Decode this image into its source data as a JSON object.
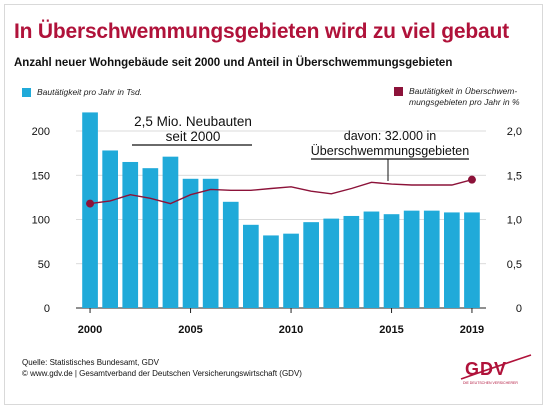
{
  "title": "In Überschwemmungsgebieten wird zu viel gebaut",
  "subtitle": "Anzahl neuer Wohngebäude seit 2000 und Anteil in Überschwemmungsgebieten",
  "legend": {
    "bars": "Bautätigkeit pro Jahr in Tsd.",
    "line_1": "Bautätigkeit in Überschwem-",
    "line_2": "mungsgebieten pro Jahr in %"
  },
  "annotations": {
    "total_line1": "2,5 Mio. Neubauten",
    "total_line2": "seit 2000",
    "flood_line1": "davon: 32.000 in",
    "flood_line2": "Überschwemmungsgebieten"
  },
  "footer": {
    "source": "Quelle: Statistisches Bundesamt, GDV",
    "copyright": "© www.gdv.de | Gesamtverband der Deutschen Versicherungswirtschaft (GDV)"
  },
  "logo": {
    "text": "GDV",
    "subtext": "DIE DEUTSCHEN VERSICHERER"
  },
  "colors": {
    "bar": "#20aad9",
    "line": "#8c1239",
    "title": "#b0123a",
    "grid": "#cfcfcf"
  },
  "chart_data": {
    "type": "bar",
    "x": [
      2000,
      2001,
      2002,
      2003,
      2004,
      2005,
      2006,
      2007,
      2008,
      2009,
      2010,
      2011,
      2012,
      2013,
      2014,
      2015,
      2016,
      2017,
      2018,
      2019
    ],
    "x_tick_labels": [
      "2000",
      "2005",
      "2010",
      "2015",
      "2019"
    ],
    "x_tick_years": [
      2000,
      2005,
      2010,
      2015,
      2019
    ],
    "series": [
      {
        "axis": "left",
        "type": "bar",
        "values": [
          221,
          178,
          165,
          158,
          171,
          146,
          146,
          120,
          94,
          82,
          84,
          97,
          101,
          104,
          109,
          106,
          110,
          110,
          108,
          108
        ]
      },
      {
        "axis": "right",
        "type": "line",
        "values": [
          1.18,
          1.21,
          1.28,
          1.24,
          1.18,
          1.28,
          1.34,
          1.33,
          1.33,
          1.35,
          1.37,
          1.32,
          1.29,
          1.35,
          1.42,
          1.4,
          1.39,
          1.39,
          1.39,
          1.45
        ]
      }
    ],
    "y_left": {
      "min": 0,
      "max": 200,
      "ticks": [
        "0",
        "50",
        "100",
        "150",
        "200"
      ],
      "tick_values": [
        0,
        50,
        100,
        150,
        200
      ]
    },
    "y_right": {
      "min": 0,
      "max": 2.0,
      "ticks": [
        "0",
        "0,5",
        "1,0",
        "1,5",
        "2,0"
      ],
      "tick_values": [
        0,
        0.5,
        1.0,
        1.5,
        2.0
      ]
    },
    "grid": true,
    "legend_position": "top"
  }
}
